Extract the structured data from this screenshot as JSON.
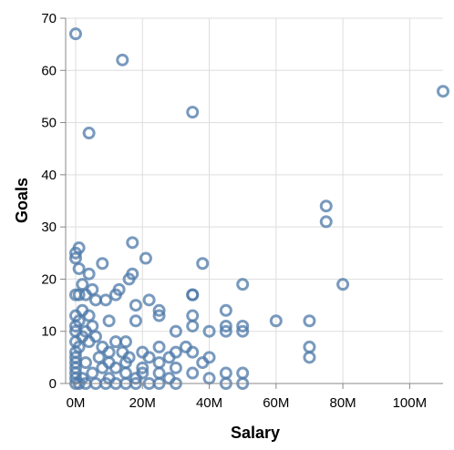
{
  "chart_data": {
    "type": "scatter",
    "title": "",
    "xlabel": "Salary",
    "ylabel": "Goals",
    "xlim": [
      -3000000,
      110000000
    ],
    "ylim": [
      0,
      70
    ],
    "x_ticks": [
      0,
      20000000,
      40000000,
      60000000,
      80000000,
      100000000
    ],
    "x_tick_labels": [
      "0M",
      "20M",
      "40M",
      "60M",
      "80M",
      "100M"
    ],
    "y_ticks": [
      0,
      10,
      20,
      30,
      40,
      50,
      60,
      70
    ],
    "y_tick_labels": [
      "0",
      "10",
      "20",
      "30",
      "40",
      "50",
      "60",
      "70"
    ],
    "grid": true,
    "marker": "open-circle",
    "color": "#4c78a8",
    "series": [
      {
        "points": [
          [
            0,
            67
          ],
          [
            14000000,
            62
          ],
          [
            110000000,
            56
          ],
          [
            35000000,
            52
          ],
          [
            4000000,
            48
          ],
          [
            75000000,
            34
          ],
          [
            75000000,
            31
          ],
          [
            17000000,
            27
          ],
          [
            1000000,
            26
          ],
          [
            0,
            25
          ],
          [
            0,
            24
          ],
          [
            21000000,
            24
          ],
          [
            38000000,
            23
          ],
          [
            8000000,
            23
          ],
          [
            1000000,
            22
          ],
          [
            4000000,
            21
          ],
          [
            17000000,
            21
          ],
          [
            50000000,
            19
          ],
          [
            80000000,
            19
          ],
          [
            2000000,
            19
          ],
          [
            5000000,
            18
          ],
          [
            13000000,
            18
          ],
          [
            16000000,
            20
          ],
          [
            0,
            17
          ],
          [
            1000000,
            17
          ],
          [
            35000000,
            17
          ],
          [
            35000000,
            17
          ],
          [
            12000000,
            17
          ],
          [
            3000000,
            17
          ],
          [
            6000000,
            16
          ],
          [
            9000000,
            16
          ],
          [
            22000000,
            16
          ],
          [
            18000000,
            15
          ],
          [
            25000000,
            14
          ],
          [
            45000000,
            14
          ],
          [
            2000000,
            14
          ],
          [
            0,
            13
          ],
          [
            25000000,
            13
          ],
          [
            35000000,
            13
          ],
          [
            4000000,
            13
          ],
          [
            70000000,
            12
          ],
          [
            60000000,
            12
          ],
          [
            18000000,
            12
          ],
          [
            10000000,
            12
          ],
          [
            1000000,
            12
          ],
          [
            35000000,
            11
          ],
          [
            45000000,
            11
          ],
          [
            50000000,
            11
          ],
          [
            0,
            11
          ],
          [
            5000000,
            11
          ],
          [
            45000000,
            10
          ],
          [
            40000000,
            10
          ],
          [
            30000000,
            10
          ],
          [
            50000000,
            10
          ],
          [
            0,
            10
          ],
          [
            3000000,
            10
          ],
          [
            2000000,
            9
          ],
          [
            6000000,
            9
          ],
          [
            0,
            8
          ],
          [
            15000000,
            8
          ],
          [
            4000000,
            8
          ],
          [
            12000000,
            8
          ],
          [
            70000000,
            7
          ],
          [
            25000000,
            7
          ],
          [
            33000000,
            7
          ],
          [
            1000000,
            7
          ],
          [
            8000000,
            7
          ],
          [
            35000000,
            6
          ],
          [
            30000000,
            6
          ],
          [
            20000000,
            6
          ],
          [
            0,
            6
          ],
          [
            10000000,
            6
          ],
          [
            14000000,
            6
          ],
          [
            70000000,
            5
          ],
          [
            40000000,
            5
          ],
          [
            28000000,
            5
          ],
          [
            22000000,
            5
          ],
          [
            0,
            5
          ],
          [
            7000000,
            5
          ],
          [
            16000000,
            5
          ],
          [
            38000000,
            4
          ],
          [
            25000000,
            4
          ],
          [
            15000000,
            4
          ],
          [
            0,
            4
          ],
          [
            3000000,
            4
          ],
          [
            10000000,
            4
          ],
          [
            30000000,
            3
          ],
          [
            20000000,
            3
          ],
          [
            0,
            3
          ],
          [
            8000000,
            3
          ],
          [
            12000000,
            3
          ],
          [
            45000000,
            2
          ],
          [
            50000000,
            2
          ],
          [
            35000000,
            2
          ],
          [
            25000000,
            2
          ],
          [
            20000000,
            2
          ],
          [
            0,
            2
          ],
          [
            5000000,
            2
          ],
          [
            15000000,
            2
          ],
          [
            40000000,
            1
          ],
          [
            28000000,
            1
          ],
          [
            18000000,
            1
          ],
          [
            0,
            1
          ],
          [
            2000000,
            1
          ],
          [
            10000000,
            1
          ],
          [
            50000000,
            0
          ],
          [
            45000000,
            0
          ],
          [
            30000000,
            0
          ],
          [
            25000000,
            0
          ],
          [
            0,
            0
          ],
          [
            1000000,
            0
          ],
          [
            3000000,
            0
          ],
          [
            6000000,
            0
          ],
          [
            9000000,
            0
          ],
          [
            12000000,
            0
          ],
          [
            15000000,
            0
          ],
          [
            18000000,
            0
          ],
          [
            22000000,
            0
          ]
        ]
      }
    ]
  }
}
